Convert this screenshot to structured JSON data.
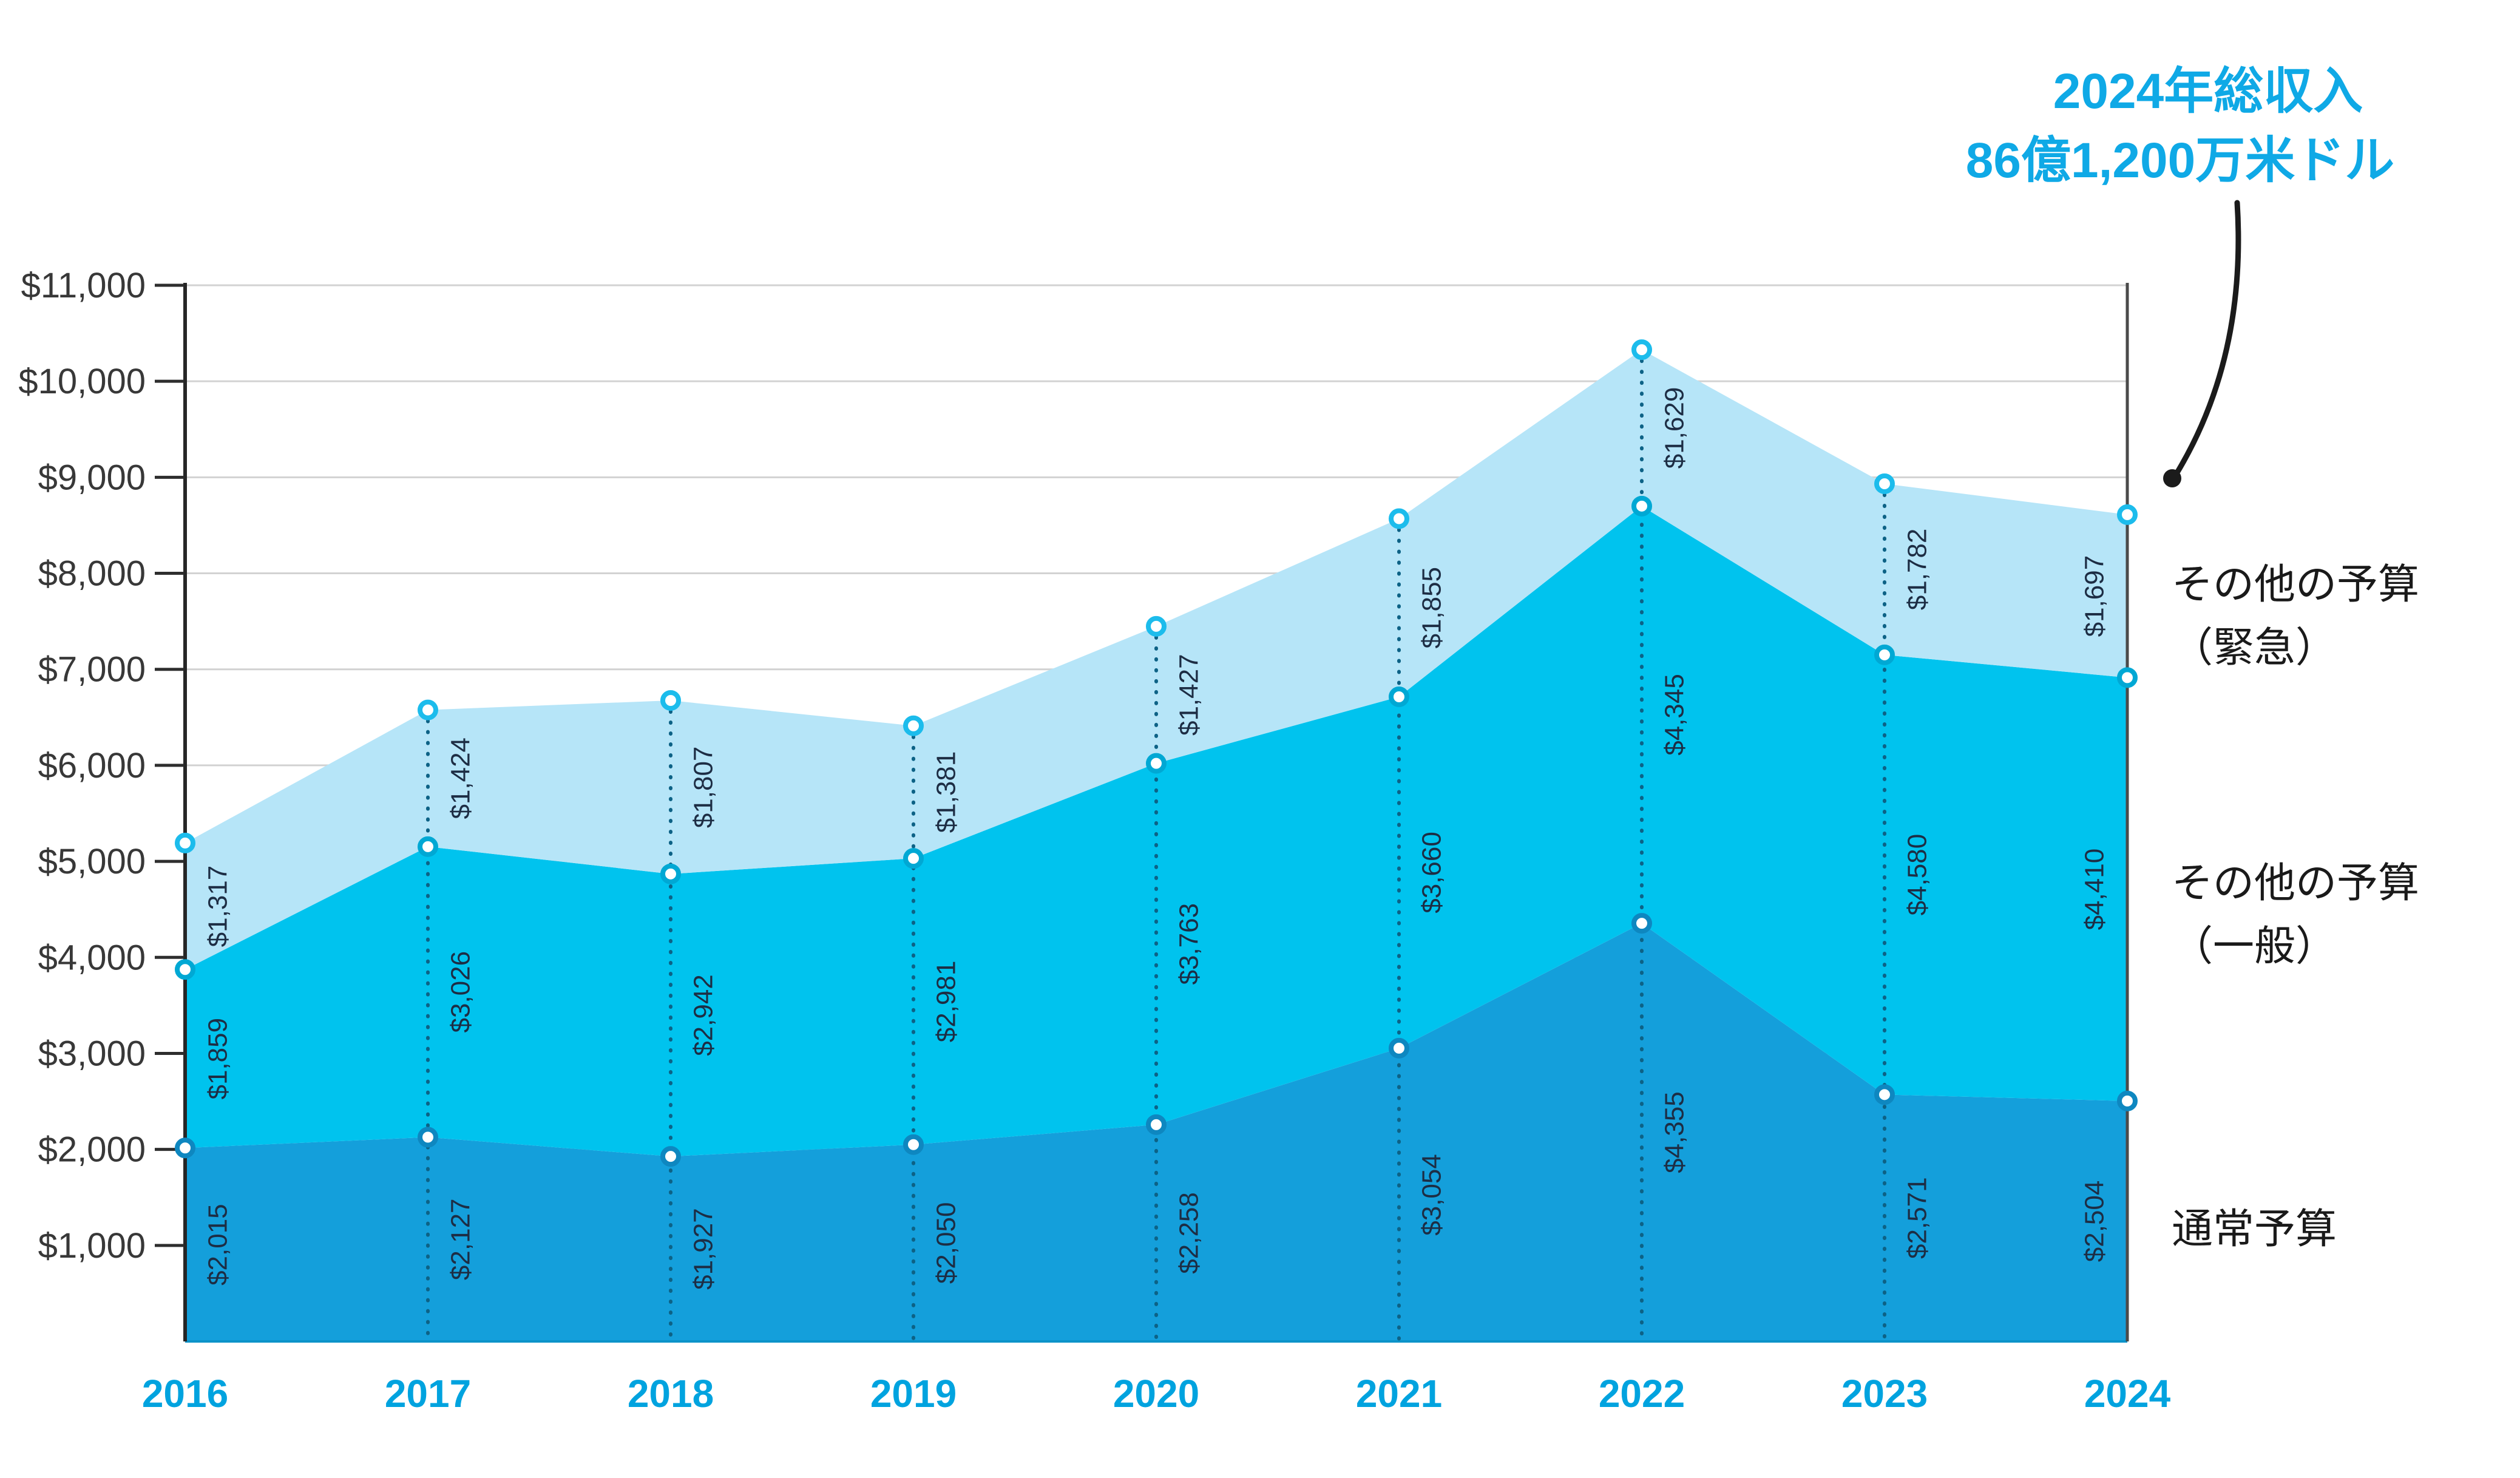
{
  "title": {
    "line1": "2024年総収入",
    "line2": "86億1,200万米ドル"
  },
  "legend": {
    "emergency": [
      "その他の予算",
      "（緊急）"
    ],
    "general": [
      "その他の予算",
      "（一般）"
    ],
    "regular": "通常予算"
  },
  "chart_data": {
    "type": "area",
    "stacked": true,
    "categories": [
      2016,
      2017,
      2018,
      2019,
      2020,
      2021,
      2022,
      2023,
      2024
    ],
    "xtick_labels": [
      "2016",
      "2017",
      "2018",
      "2019",
      "2020",
      "2021",
      "2022",
      "2023",
      "2024"
    ],
    "series": [
      {
        "name": "通常予算",
        "values": [
          2015,
          2127,
          1927,
          2050,
          2258,
          3054,
          4355,
          2571,
          2504
        ],
        "labels": [
          "$2,015",
          "$2,127",
          "$1,927",
          "$2,050",
          "$2,258",
          "$3,054",
          "$4,355",
          "$2,571",
          "$2,504"
        ],
        "color": "#149FDB",
        "marker_color": "#0E87C0"
      },
      {
        "name": "その他の予算（一般）",
        "values": [
          1859,
          3026,
          2942,
          2981,
          3763,
          3660,
          4345,
          4580,
          4410
        ],
        "labels": [
          "$1,859",
          "$3,026",
          "$2,942",
          "$2,981",
          "$3,763",
          "$3,660",
          "$4,345",
          "$4,580",
          "$4,410"
        ],
        "color": "#00C3EE",
        "marker_color": "#00A8D4"
      },
      {
        "name": "その他の予算（緊急）",
        "values": [
          1317,
          1424,
          1807,
          1381,
          1427,
          1855,
          1629,
          1782,
          1697
        ],
        "labels": [
          "$1,317",
          "$1,424",
          "$1,807",
          "$1,381",
          "$1,427",
          "$1,855",
          "$1,629",
          "$1,782",
          "$1,697"
        ],
        "color": "#B6E5F8",
        "marker_color": "#1CBCEC"
      }
    ],
    "totals": [
      5191,
      6577,
      6676,
      6412,
      7448,
      8569,
      10329,
      8933,
      8611
    ],
    "ylim": [
      0,
      11000
    ],
    "ytick_step": 1000,
    "ytick_labels": [
      "$1,000",
      "$2,000",
      "$3,000",
      "$4,000",
      "$5,000",
      "$6,000",
      "$7,000",
      "$8,000",
      "$9,000",
      "$10,000",
      "$11,000"
    ],
    "grid": true,
    "legend_position": "right",
    "annotation": {
      "text": "2024年総収入 86億1,200万米ドル",
      "target_year": 2024,
      "target_value": 8612
    },
    "colors": {
      "grid": "#D2D2D2",
      "axis_left": "#262626",
      "axis_right": "#4A4A4A",
      "baseline": "#0C93C9",
      "leader_dots": "#0D6286",
      "value_label": "#1D2D44",
      "year_label": "#00A3DF",
      "y_label": "#383838",
      "title": "#0FA9E6",
      "legend_text": "#1A1A1A",
      "annotation_line": "#1B1B1B",
      "marker_fill": "#FFFFFF"
    }
  }
}
